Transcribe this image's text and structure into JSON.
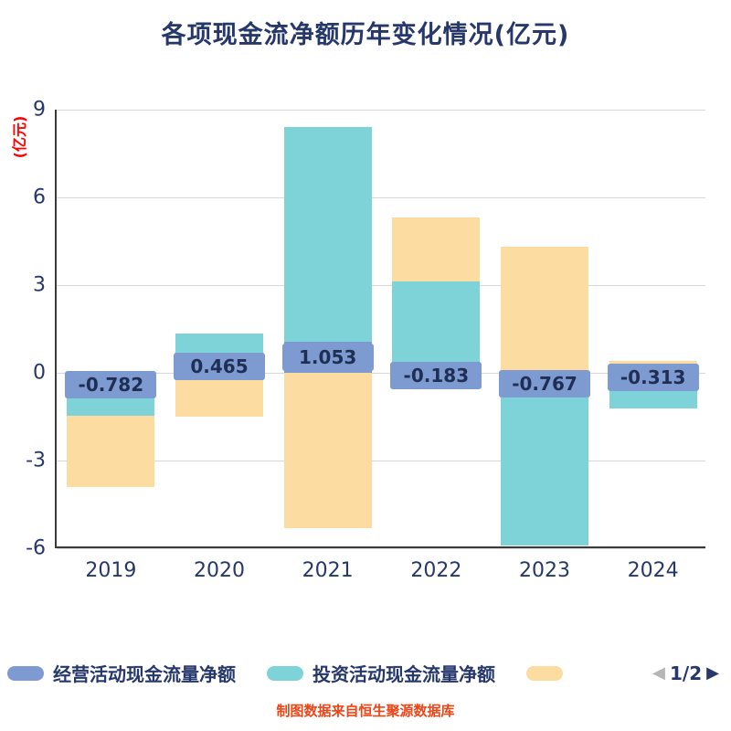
{
  "chart": {
    "title": "各项现金流净额历年变化情况(亿元)",
    "y_unit": "(亿元)",
    "source_note": "制图数据来自恒生聚源数据库"
  },
  "legend": {
    "items": [
      {
        "label": "经营活动现金流量净额",
        "color": "#7d9ad1"
      },
      {
        "label": "投资活动现金流量净额",
        "color": "#7ed3d8"
      },
      {
        "label": "",
        "color": "#fcdca0"
      }
    ],
    "pagination": {
      "prev": "◀",
      "page": "1/2",
      "next": "▶"
    }
  },
  "chart_data": {
    "type": "bar",
    "stacked": true,
    "title": "各项现金流净额历年变化情况(亿元)",
    "ylabel": "(亿元)",
    "categories": [
      "2019",
      "2020",
      "2021",
      "2022",
      "2023",
      "2024"
    ],
    "series": [
      {
        "name": "经营活动现金流量净额",
        "color": "#7d9ad1",
        "values": [
          -0.782,
          0.465,
          1.053,
          -0.183,
          -0.767,
          -0.313
        ]
      },
      {
        "name": "投资活动现金流量净额",
        "color": "#7ed3d8",
        "values": [
          -0.69,
          0.88,
          7.35,
          3.12,
          -5.14,
          -0.9
        ]
      },
      {
        "name": "",
        "color": "#fcdca0",
        "values": [
          -2.43,
          -1.5,
          -5.3,
          2.19,
          4.31,
          0.4
        ]
      }
    ],
    "data_labels": {
      "series_index": 0,
      "values": [
        "-0.782",
        "0.465",
        "1.053",
        "-0.183",
        "-0.767",
        "-0.313"
      ]
    },
    "ylim": [
      -6,
      9
    ],
    "yticks": [
      9,
      6,
      3,
      0,
      -3,
      -6
    ],
    "grid": true,
    "legend_position": "bottom",
    "colors": {
      "title_text": "#26386b",
      "axis_text": "#26386b",
      "y_unit_text": "#ff0000",
      "source_text": "#ee4416",
      "gridline": "#d8d8d8",
      "axis_line": "#3a3a3a",
      "data_label_text": "#1f2f54",
      "pagination_prev": "#b5b5b5",
      "pagination_next": "#26386b"
    }
  }
}
